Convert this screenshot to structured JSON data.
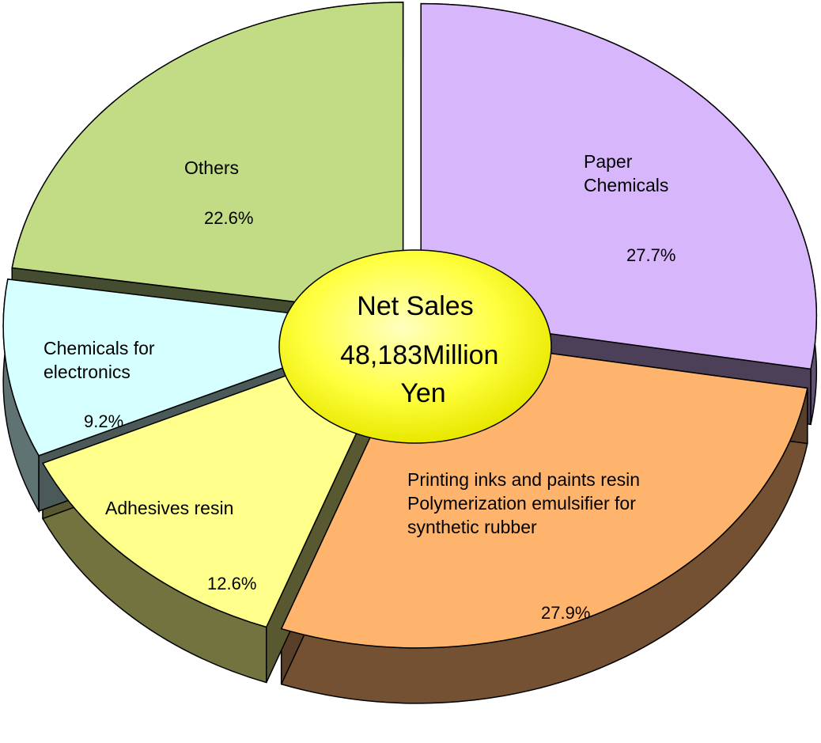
{
  "chart_data": {
    "type": "pie",
    "title": "Net Sales",
    "subtitle": "48,183Million Yen",
    "categories": [
      "Paper Chemicals",
      "Printing inks and paints resin Polymerization emulsifier for synthetic rubber",
      "Adhesives resin",
      "Chemicals for electronics",
      "Others"
    ],
    "values": [
      27.7,
      27.9,
      12.6,
      9.2,
      22.6
    ],
    "value_labels": [
      "27.7%",
      "27.9%",
      "12.6%",
      "9.2%",
      "22.6%"
    ],
    "colors": [
      "#d8b6fc",
      "#ffb46e",
      "#ffff8c",
      "#d6ffff",
      "#c2dc86"
    ]
  }
}
